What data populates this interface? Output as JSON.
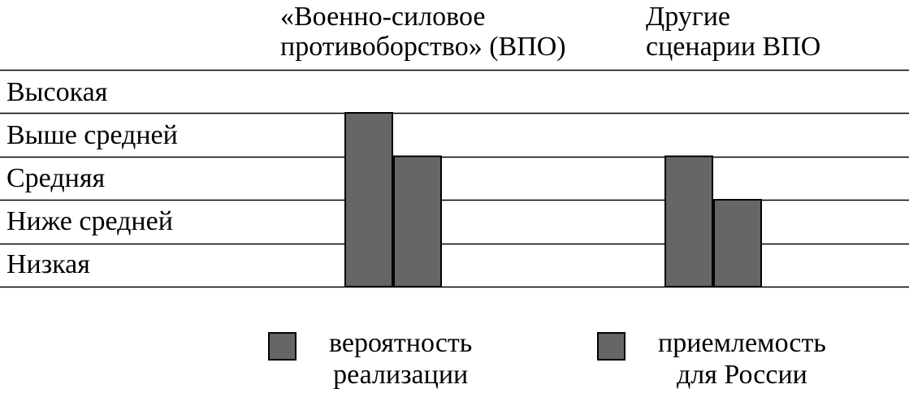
{
  "chart_data": {
    "type": "bar",
    "categories": [
      "«Военно-силовое\nпротивоборство» (ВПО)",
      "Другие\nсценарии ВПО"
    ],
    "levels": [
      "Высокая",
      "Выше средней",
      "Средняя",
      "Ниже средней",
      "Низкая"
    ],
    "series": [
      {
        "name": "вероятность\nреализации",
        "values": [
          4,
          3
        ],
        "color": "#666666"
      },
      {
        "name": "приемлемость\nдля России",
        "values": [
          3,
          2
        ],
        "color": "#666666"
      }
    ],
    "xlabel": "",
    "ylabel": "",
    "ylim": [
      0,
      5
    ],
    "grid": true,
    "legend_position": "bottom"
  }
}
